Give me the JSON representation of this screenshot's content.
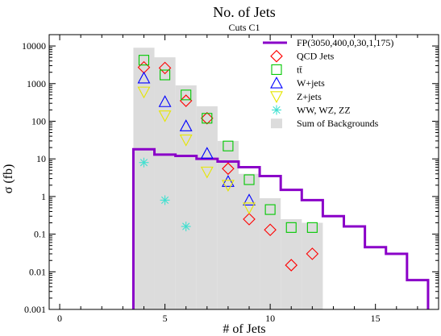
{
  "chart_data": {
    "type": "scatter",
    "title": "No. of Jets",
    "subtitle": "Cuts C1",
    "xlabel": "# of Jets",
    "ylabel": "σ (fb)",
    "xlim": [
      -0.5,
      18
    ],
    "ylim": [
      0.001,
      20000
    ],
    "yscale": "log",
    "x_ticks": [
      0,
      5,
      10,
      15
    ],
    "y_ticks": [
      {
        "value": 0.001,
        "label": "0.001"
      },
      {
        "value": 0.01,
        "label": "0.01"
      },
      {
        "value": 0.1,
        "label": "0.1"
      },
      {
        "value": 1,
        "label": "1"
      },
      {
        "value": 10,
        "label": "10"
      },
      {
        "value": 100,
        "label": "100"
      },
      {
        "value": 1000,
        "label": "1000"
      },
      {
        "value": 10000,
        "label": "10000"
      }
    ],
    "legend_position": "top-right",
    "background": {
      "name": "Sum of Backgrounds",
      "color": "#dcdcdc",
      "bins": [
        {
          "x": 4,
          "y": 9000
        },
        {
          "x": 5,
          "y": 5000
        },
        {
          "x": 6,
          "y": 900
        },
        {
          "x": 7,
          "y": 250
        },
        {
          "x": 8,
          "y": 30
        },
        {
          "x": 9,
          "y": 4
        },
        {
          "x": 10,
          "y": 0.9
        },
        {
          "x": 11,
          "y": 0.25
        },
        {
          "x": 12,
          "y": 0.2
        }
      ]
    },
    "signal": {
      "name": "FP(3050,400,0,30,1,175)",
      "color": "#8a00c8",
      "bins": [
        {
          "x": 4,
          "y": 18
        },
        {
          "x": 5,
          "y": 13
        },
        {
          "x": 6,
          "y": 12
        },
        {
          "x": 7,
          "y": 10
        },
        {
          "x": 8,
          "y": 8.5
        },
        {
          "x": 9,
          "y": 6
        },
        {
          "x": 10,
          "y": 3.5
        },
        {
          "x": 11,
          "y": 1.5
        },
        {
          "x": 12,
          "y": 0.8
        },
        {
          "x": 13,
          "y": 0.3
        },
        {
          "x": 14,
          "y": 0.16
        },
        {
          "x": 15,
          "y": 0.045
        },
        {
          "x": 16,
          "y": 0.03
        },
        {
          "x": 17,
          "y": 0.006
        }
      ]
    },
    "series": [
      {
        "name": "QCD Jets",
        "marker": "diamond",
        "color": "#ff0000",
        "points": [
          {
            "x": 4,
            "y": 2700
          },
          {
            "x": 5,
            "y": 2600
          },
          {
            "x": 6,
            "y": 350
          },
          {
            "x": 7,
            "y": 120
          },
          {
            "x": 8,
            "y": 5.5
          },
          {
            "x": 9,
            "y": 0.25
          },
          {
            "x": 10,
            "y": 0.13
          },
          {
            "x": 11,
            "y": 0.015
          },
          {
            "x": 12,
            "y": 0.03
          }
        ]
      },
      {
        "name": "tt̄",
        "marker": "square",
        "color": "#00c800",
        "points": [
          {
            "x": 4,
            "y": 4200
          },
          {
            "x": 5,
            "y": 1700
          },
          {
            "x": 6,
            "y": 500
          },
          {
            "x": 7,
            "y": 120
          },
          {
            "x": 8,
            "y": 22
          },
          {
            "x": 9,
            "y": 2.8
          },
          {
            "x": 10,
            "y": 0.45
          },
          {
            "x": 11,
            "y": 0.15
          },
          {
            "x": 12,
            "y": 0.15
          }
        ]
      },
      {
        "name": "W+jets",
        "marker": "triangle-up",
        "color": "#0000ff",
        "points": [
          {
            "x": 4,
            "y": 1400
          },
          {
            "x": 5,
            "y": 330
          },
          {
            "x": 6,
            "y": 75
          },
          {
            "x": 7,
            "y": 14
          },
          {
            "x": 8,
            "y": 2.5
          },
          {
            "x": 9,
            "y": 0.8
          }
        ]
      },
      {
        "name": "Z+jets",
        "marker": "triangle-down",
        "color": "#e6e600",
        "points": [
          {
            "x": 4,
            "y": 600
          },
          {
            "x": 5,
            "y": 140
          },
          {
            "x": 6,
            "y": 32
          },
          {
            "x": 7,
            "y": 4.5
          },
          {
            "x": 8,
            "y": 2.0
          },
          {
            "x": 9,
            "y": 0.5
          }
        ]
      },
      {
        "name": "WW, WZ, ZZ",
        "marker": "asterisk",
        "color": "#40e0d0",
        "points": [
          {
            "x": 4,
            "y": 8
          },
          {
            "x": 5,
            "y": 0.8
          },
          {
            "x": 6,
            "y": 0.16
          }
        ]
      }
    ]
  }
}
